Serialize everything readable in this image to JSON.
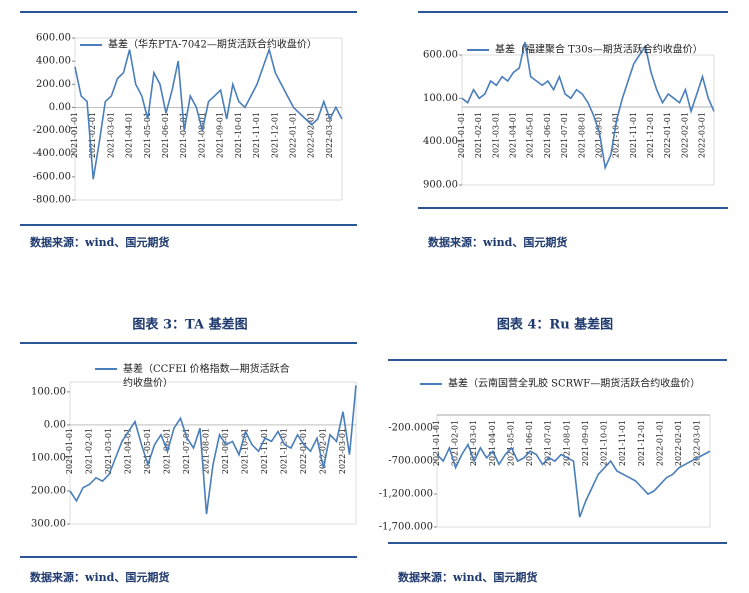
{
  "chart_data": [
    {
      "type": "line",
      "legend": "基差（华东PTA-7042—期货活跃合约收盘价）",
      "source": "数据来源：wind、国元期货",
      "color": "#4a7ebb",
      "categories": [
        "2021-01-01",
        null,
        null,
        "2021-02-01",
        null,
        null,
        "2021-03-01",
        null,
        null,
        "2021-04-01",
        null,
        null,
        "2021-05-01",
        null,
        null,
        "2021-06-01",
        null,
        null,
        "2021-07-01",
        null,
        null,
        "2021-08-01",
        null,
        null,
        "2021-09-01",
        null,
        null,
        "2021-10-01",
        null,
        null,
        "2021-11-01",
        null,
        null,
        "2021-12-01",
        null,
        null,
        "2022-01-01",
        null,
        null,
        "2022-02-01",
        null,
        null,
        "2022-03-01",
        null,
        null
      ],
      "values": [
        350,
        100,
        50,
        -620,
        -300,
        50,
        100,
        250,
        300,
        500,
        200,
        100,
        -100,
        300,
        200,
        -50,
        150,
        400,
        -200,
        100,
        0,
        -200,
        50,
        100,
        150,
        -100,
        200,
        50,
        0,
        100,
        200,
        350,
        500,
        300,
        200,
        100,
        0,
        -50,
        -100,
        -150,
        -100,
        50,
        -100,
        0,
        -100
      ],
      "ylim": [
        -800,
        600
      ],
      "yticks": [
        {
          "value": 600,
          "label": "600.00"
        },
        {
          "value": 400,
          "label": "400.00"
        },
        {
          "value": 200,
          "label": "200.00"
        },
        {
          "value": 0,
          "label": "0.00"
        },
        {
          "value": -200,
          "label": "-200.00"
        },
        {
          "value": -400,
          "label": "-400.00"
        },
        {
          "value": -600,
          "label": "-600.00"
        },
        {
          "value": -800,
          "label": "-800.00"
        }
      ]
    },
    {
      "type": "line",
      "legend": "基差（福建聚合 T30s—期货活跃合约收盘价）",
      "source": "数据来源：wind、国元期货",
      "color": "#4a7ebb",
      "categories": [
        "2021-01-01",
        null,
        null,
        "2021-02-01",
        null,
        null,
        "2021-03-01",
        null,
        null,
        "2021-04-01",
        null,
        null,
        "2021-05-01",
        null,
        null,
        "2021-06-01",
        null,
        null,
        "2021-07-01",
        null,
        null,
        "2021-08-01",
        null,
        null,
        "2021-09-01",
        null,
        null,
        "2021-10-01",
        null,
        null,
        "2021-11-01",
        null,
        null,
        "2021-12-01",
        null,
        null,
        "2022-01-01",
        null,
        null,
        "2022-02-01",
        null,
        null,
        "2022-03-01",
        null,
        null
      ],
      "values": [
        100,
        50,
        200,
        100,
        150,
        300,
        250,
        350,
        300,
        400,
        450,
        750,
        350,
        300,
        250,
        300,
        200,
        350,
        150,
        100,
        200,
        150,
        50,
        -100,
        -300,
        -700,
        -550,
        -150,
        100,
        300,
        500,
        600,
        700,
        400,
        200,
        50,
        150,
        100,
        50,
        200,
        -50,
        150,
        350,
        100,
        -50
      ],
      "ylim": [
        -900,
        600
      ],
      "yticks": [
        {
          "value": 600,
          "label": "600.00"
        },
        {
          "value": 100,
          "label": "100.00"
        },
        {
          "value": -400,
          "label": "400.00"
        },
        {
          "value": -900,
          "label": "900.00"
        }
      ]
    },
    {
      "type": "line",
      "title": "图表 3：TA 基差图",
      "legend": "基差（CCFEI 价格指数—期货活跃合约收盘价）",
      "source": "数据来源：wind、国元期货",
      "color": "#4a7ebb",
      "categories": [
        "2021-01-01",
        null,
        null,
        "2021-02-01",
        null,
        null,
        "2021-03-01",
        null,
        null,
        "2021-04-01",
        null,
        null,
        "2021-05-01",
        null,
        null,
        "2021-06-01",
        null,
        null,
        "2021-07-01",
        null,
        null,
        "2021-08-01",
        null,
        null,
        "2021-09-01",
        null,
        null,
        "2021-10-01",
        null,
        null,
        "2021-11-01",
        null,
        null,
        "2021-12-01",
        null,
        null,
        "2022-01-01",
        null,
        null,
        "2022-02-01",
        null,
        null,
        "2022-03-01",
        null,
        null
      ],
      "values": [
        -200,
        -230,
        -190,
        -180,
        -160,
        -170,
        -150,
        -100,
        -50,
        -20,
        10,
        -60,
        -120,
        -60,
        -30,
        -80,
        -10,
        20,
        -40,
        -70,
        -10,
        -270,
        -120,
        -30,
        -60,
        -50,
        -90,
        -20,
        -60,
        -80,
        -40,
        -50,
        -20,
        -60,
        -70,
        -30,
        -60,
        -80,
        -40,
        -130,
        -30,
        -50,
        40,
        -90,
        120
      ],
      "ylim": [
        -300,
        130
      ],
      "yticks": [
        {
          "value": 100,
          "label": "100.00"
        },
        {
          "value": 0,
          "label": "0.00"
        },
        {
          "value": -100,
          "label": "100.00"
        },
        {
          "value": -200,
          "label": "200.00"
        },
        {
          "value": -300,
          "label": "300.00"
        }
      ]
    },
    {
      "type": "line",
      "title": "图表 4：Ru 基差图",
      "legend": "基差（云南国营全乳胶 SCRWF—期货活跃合约收盘价）",
      "source": "数据来源：wind、国元期货",
      "color": "#4a7ebb",
      "categories": [
        "2021-01-01",
        null,
        null,
        "2021-02-01",
        null,
        null,
        "2021-03-01",
        null,
        null,
        "2021-04-01",
        null,
        null,
        "2021-05-01",
        null,
        null,
        "2021-06-01",
        null,
        null,
        "2021-07-01",
        null,
        null,
        "2021-08-01",
        null,
        null,
        "2021-09-01",
        null,
        null,
        "2021-10-01",
        null,
        null,
        "2021-11-01",
        null,
        null,
        "2021-12-01",
        null,
        null,
        "2022-01-01",
        null,
        null,
        "2022-02-01",
        null,
        null,
        "2022-03-01",
        null,
        null
      ],
      "values": [
        -600,
        -700,
        -500,
        -800,
        -600,
        -450,
        -700,
        -500,
        -650,
        -550,
        -750,
        -600,
        -500,
        -700,
        -650,
        -550,
        -600,
        -750,
        -650,
        -700,
        -600,
        -650,
        -700,
        -1550,
        -1300,
        -1100,
        -900,
        -800,
        -700,
        -850,
        -900,
        -950,
        -1000,
        -1100,
        -1200,
        -1150,
        -1050,
        -950,
        -900,
        -800,
        -750,
        -700,
        -650,
        -600,
        -550
      ],
      "ylim": [
        -1700,
        0
      ],
      "yticks": [
        {
          "value": -200,
          "label": "-200.000"
        },
        {
          "value": -700,
          "label": "-700.000"
        },
        {
          "value": -1200,
          "label": "-1,200.000"
        },
        {
          "value": -1700,
          "label": "-1,700.000"
        }
      ]
    }
  ]
}
